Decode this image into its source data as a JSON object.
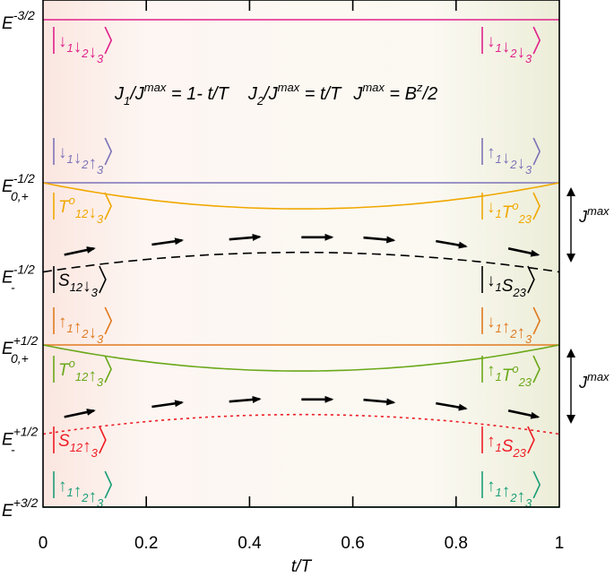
{
  "chart_data": {
    "type": "line",
    "title": "",
    "xlabel": "t/T",
    "ylabel": "",
    "xlim": [
      0,
      1
    ],
    "x_ticks": [
      "0",
      "0.2",
      "0.4",
      "0.6",
      "0.8",
      "1"
    ],
    "x_tick_values": [
      0,
      0.2,
      0.4,
      0.6,
      0.8,
      1
    ],
    "grid": false,
    "formula": {
      "j1_text": "J",
      "j1_sub": "1",
      "j1_rest": "/J",
      "j1_sup": "max",
      "j1_eq": " = 1- t/T",
      "j2_text": "J",
      "j2_sub": "2",
      "j2_rest": "/J",
      "j2_sup": "max",
      "j2_eq": " = t/T",
      "jm_text": "J",
      "jm_sup": "max",
      "jm_eq": " = B",
      "jm_bsup": "z",
      "jm_end": "/2"
    },
    "jmax_label_base": "J",
    "jmax_label_sup": "max",
    "series": [
      {
        "id": "e-3/2",
        "style": "solid",
        "color": "#e0218a",
        "level": 0.0,
        "label_base": "E",
        "label_sup": "-3/2",
        "label_sub": "",
        "points": []
      },
      {
        "id": "e0p-1/2",
        "style": "solid",
        "color": "#7d73b8",
        "level": 1.0,
        "label_base": "E",
        "label_sup": "-1/2",
        "label_sub": "0,+",
        "points": []
      },
      {
        "id": "t0-upper",
        "style": "solid",
        "color": "#f0a800",
        "level": 1.0,
        "dip": 0.16,
        "label_base": "",
        "label_sup": "",
        "label_sub": "",
        "points": []
      },
      {
        "id": "e-minus-1/2",
        "style": "dashed",
        "color": "#000000",
        "level": 1.55,
        "dip": -0.12,
        "label_base": "E",
        "label_sup": "-1/2",
        "label_sub": "-",
        "points": []
      },
      {
        "id": "e0p+1/2",
        "style": "solid",
        "color": "#e07a20",
        "level": 2.0,
        "label_base": "E",
        "label_sup": "+1/2",
        "label_sub": "0,+",
        "points": []
      },
      {
        "id": "t0-lower",
        "style": "solid",
        "color": "#6aa819",
        "level": 2.0,
        "dip": 0.16,
        "label_base": "",
        "label_sup": "",
        "label_sub": "",
        "points": []
      },
      {
        "id": "e-minus+1/2",
        "style": "dotted",
        "color": "#ee1c24",
        "level": 2.55,
        "dip": -0.12,
        "label_base": "E",
        "label_sup": "+1/2",
        "label_sub": "-",
        "points": []
      },
      {
        "id": "e+3/2",
        "style": "solid",
        "color": "#1a9e77",
        "level": 3.0,
        "label_base": "E",
        "label_sup": "+3/2",
        "label_sub": "",
        "points": []
      }
    ],
    "state_labels": [
      {
        "side": "left",
        "color": "#e0218a",
        "parts": [
          [
            "↓",
            "1",
            ""
          ],
          [
            "↓",
            "2",
            ""
          ],
          [
            "↓",
            "3",
            ""
          ]
        ],
        "slot": "ket-1"
      },
      {
        "side": "right",
        "color": "#e0218a",
        "parts": [
          [
            "↓",
            "1",
            ""
          ],
          [
            "↓",
            "2",
            ""
          ],
          [
            "↓",
            "3",
            ""
          ]
        ],
        "slot": "ket-1"
      },
      {
        "side": "left",
        "color": "#7d73b8",
        "parts": [
          [
            "↓",
            "1",
            ""
          ],
          [
            "↓",
            "2",
            ""
          ],
          [
            "↑",
            "3",
            ""
          ]
        ],
        "slot": "ket-2"
      },
      {
        "side": "right",
        "color": "#7d73b8",
        "parts": [
          [
            "↑",
            "1",
            ""
          ],
          [
            "↓",
            "2",
            ""
          ],
          [
            "↓",
            "3",
            ""
          ]
        ],
        "slot": "ket-2"
      },
      {
        "side": "left",
        "color": "#f0a800",
        "parts": [
          [
            "T",
            "12",
            "o"
          ],
          [
            "↓",
            "3",
            ""
          ]
        ],
        "slot": "ket-3"
      },
      {
        "side": "right",
        "color": "#f0a800",
        "parts": [
          [
            "↓",
            "1",
            ""
          ],
          [
            "T",
            "23",
            "o"
          ]
        ],
        "slot": "ket-3"
      },
      {
        "side": "left",
        "color": "#000000",
        "parts": [
          [
            "S",
            "12",
            ""
          ],
          [
            "↓",
            "3",
            ""
          ]
        ],
        "slot": "ket-4"
      },
      {
        "side": "right",
        "color": "#000000",
        "parts": [
          [
            "↓",
            "1",
            ""
          ],
          [
            "S",
            "23",
            ""
          ]
        ],
        "slot": "ket-4"
      },
      {
        "side": "left",
        "color": "#e07a20",
        "parts": [
          [
            "↑",
            "1",
            ""
          ],
          [
            "↑",
            "2",
            ""
          ],
          [
            "↓",
            "3",
            ""
          ]
        ],
        "slot": "ket-5"
      },
      {
        "side": "right",
        "color": "#e07a20",
        "parts": [
          [
            "↓",
            "1",
            ""
          ],
          [
            "↑",
            "2",
            ""
          ],
          [
            "↑",
            "3",
            ""
          ]
        ],
        "slot": "ket-5"
      },
      {
        "side": "left",
        "color": "#6aa819",
        "parts": [
          [
            "T",
            "12",
            "o"
          ],
          [
            "↑",
            "3",
            ""
          ]
        ],
        "slot": "ket-6"
      },
      {
        "side": "right",
        "color": "#6aa819",
        "parts": [
          [
            "↑",
            "1",
            ""
          ],
          [
            "T",
            "23",
            "o"
          ]
        ],
        "slot": "ket-6"
      },
      {
        "side": "left",
        "color": "#ee1c24",
        "parts": [
          [
            "S",
            "12",
            ""
          ],
          [
            "↑",
            "3",
            ""
          ]
        ],
        "slot": "ket-7"
      },
      {
        "side": "right",
        "color": "#ee1c24",
        "parts": [
          [
            "↑",
            "1",
            ""
          ],
          [
            "S",
            "23",
            ""
          ]
        ],
        "slot": "ket-7"
      },
      {
        "side": "left",
        "color": "#1a9e77",
        "parts": [
          [
            "↑",
            "1",
            ""
          ],
          [
            "↑",
            "2",
            ""
          ],
          [
            "↑",
            "3",
            ""
          ]
        ],
        "slot": "ket-8"
      },
      {
        "side": "right",
        "color": "#1a9e77",
        "parts": [
          [
            "↑",
            "1",
            ""
          ],
          [
            "↑",
            "2",
            ""
          ],
          [
            "↑",
            "3",
            ""
          ]
        ],
        "slot": "ket-8"
      }
    ],
    "arrow_x": [
      0.07,
      0.24,
      0.39,
      0.53,
      0.65,
      0.79,
      0.93
    ],
    "arrow_angle_deg": [
      -12,
      -8,
      -5,
      0,
      5,
      10,
      12
    ]
  }
}
